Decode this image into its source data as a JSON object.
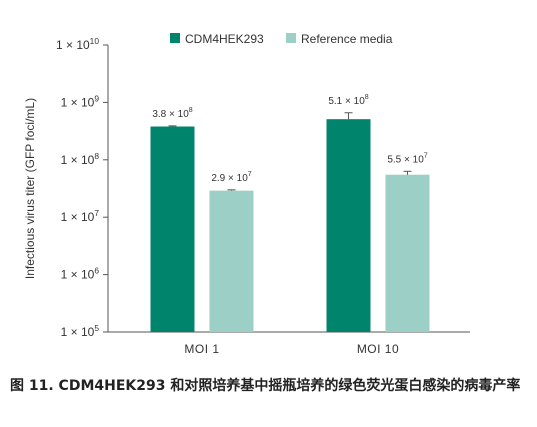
{
  "chart_data": {
    "type": "bar",
    "yscale": "log",
    "ylim": [
      100000,
      10000000000
    ],
    "ylabel": "Infectious virus titer (GFP foci/mL)",
    "yticks": [
      {
        "value": 100000,
        "base": "1 × 10",
        "exp": "5"
      },
      {
        "value": 1000000,
        "base": "1 × 10",
        "exp": "6"
      },
      {
        "value": 10000000,
        "base": "1 × 10",
        "exp": "7"
      },
      {
        "value": 100000000,
        "base": "1 × 10",
        "exp": "8"
      },
      {
        "value": 1000000000,
        "base": "1 × 10",
        "exp": "9"
      },
      {
        "value": 10000000000,
        "base": "1 × 10",
        "exp": "10"
      }
    ],
    "categories": [
      "MOI 1",
      "MOI 10"
    ],
    "series": [
      {
        "name": "CDM4HEK293",
        "color": "#00846b",
        "values": [
          380000000,
          510000000
        ],
        "error_upper": [
          390000000,
          660000000
        ],
        "labels": [
          {
            "base": "3.8 × 10",
            "exp": "8"
          },
          {
            "base": "5.1 × 10",
            "exp": "8"
          }
        ]
      },
      {
        "name": "Reference media",
        "color": "#9ccfc5",
        "values": [
          29000000,
          55000000
        ],
        "error_upper": [
          30000000,
          63000000
        ],
        "labels": [
          {
            "base": "2.9 × 10",
            "exp": "7"
          },
          {
            "base": "5.5 × 10",
            "exp": "7"
          }
        ]
      }
    ],
    "legend_position": "top",
    "grid": false
  },
  "caption": "图 11. CDM4HEK293 和对照培养基中摇瓶培养的绿色荧光蛋白感染的病毒产率"
}
